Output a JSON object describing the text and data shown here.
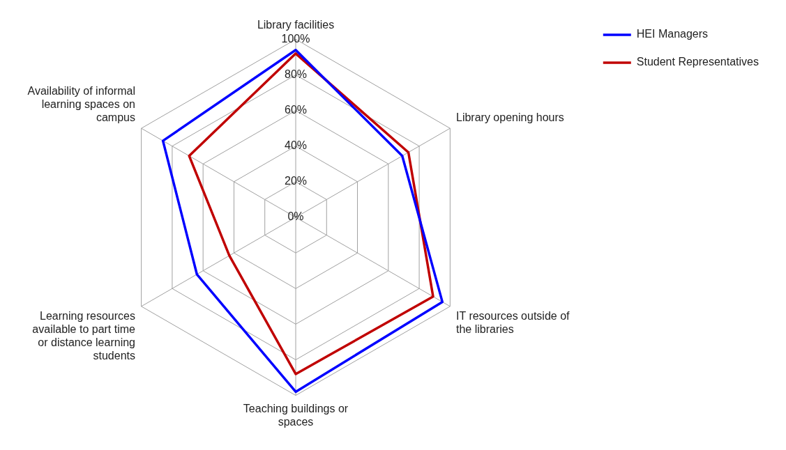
{
  "chart_data": {
    "type": "radar",
    "categories": [
      "Library facilities",
      "Library opening hours",
      "IT resources outside of the libraries",
      "Teaching buildings or spaces",
      "Learning resources available to part time or distance learning students",
      "Availability of informal learning spaces on campus"
    ],
    "series": [
      {
        "name": "HEI Managers",
        "color": "#0000ff",
        "values": [
          94,
          69,
          95,
          98,
          64,
          86
        ]
      },
      {
        "name": "Student Representatives",
        "color": "#c00000",
        "values": [
          92,
          73,
          89,
          88,
          43,
          69
        ]
      }
    ],
    "ylim": [
      0,
      100
    ],
    "yticks": [
      {
        "value": 0,
        "label": "0%"
      },
      {
        "value": 20,
        "label": "20%"
      },
      {
        "value": 40,
        "label": "40%"
      },
      {
        "value": 60,
        "label": "60%"
      },
      {
        "value": 80,
        "label": "80%"
      },
      {
        "value": 100,
        "label": "100%"
      }
    ],
    "grid": true,
    "legend": "top right",
    "marker": "none"
  }
}
